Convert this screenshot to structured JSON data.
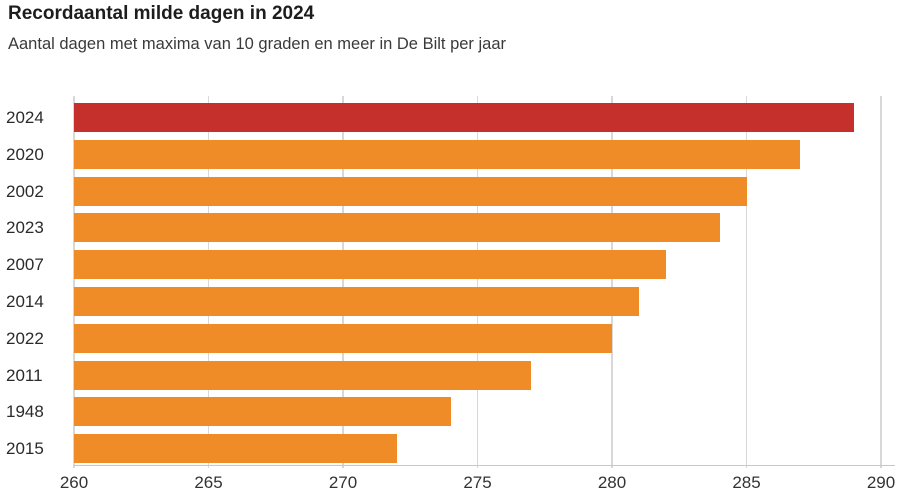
{
  "header": {
    "title": "Recordaantal milde dagen in 2024",
    "subtitle": "Aantal dagen met maxima van 10 graden en meer in De Bilt per jaar"
  },
  "colors": {
    "highlight_bar": "#c5302c",
    "bar": "#ef8c28",
    "gridline": "#d8d8d8",
    "axis_line": "#c8c8c8",
    "title_text": "#1d1d1d",
    "subtitle_text": "#3a3a3a",
    "year_label_text": "#2b2b2b",
    "tick_label_text": "#333333"
  },
  "chart_data": {
    "type": "bar",
    "orientation": "horizontal",
    "title": "Recordaantal milde dagen in 2024",
    "subtitle": "Aantal dagen met maxima van 10 graden en meer in De Bilt per jaar",
    "categories": [
      "2024",
      "2020",
      "2002",
      "2023",
      "2007",
      "2014",
      "2022",
      "2011",
      "1948",
      "2015"
    ],
    "values": [
      289,
      287,
      285,
      284,
      282,
      281,
      280,
      277,
      274,
      272
    ],
    "highlighted_category": "2024",
    "xlabel": "",
    "ylabel": "",
    "xlim": [
      260,
      290
    ],
    "xticks": [
      260,
      265,
      270,
      275,
      280,
      285,
      290
    ],
    "grid": true,
    "legend": false
  }
}
